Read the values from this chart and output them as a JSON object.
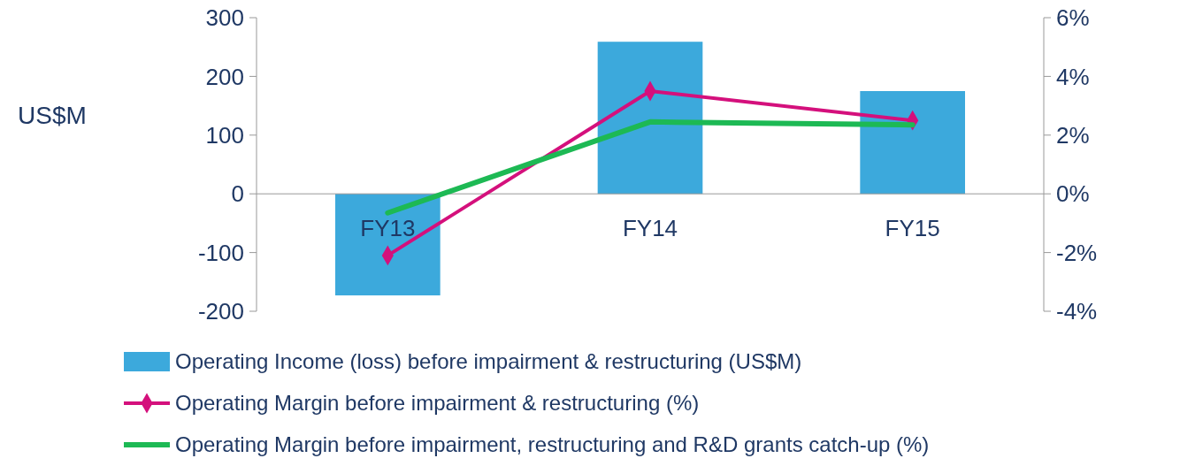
{
  "chart_data": {
    "type": "bar",
    "categories": [
      "FY13",
      "FY14",
      "FY15"
    ],
    "ylabel": "US$M",
    "ylim": [
      -200,
      300
    ],
    "yticks": [
      -200,
      -100,
      0,
      100,
      200,
      300
    ],
    "y2lim": [
      -4,
      6
    ],
    "y2ticks": [
      {
        "value": -4,
        "label": "-4%"
      },
      {
        "value": -2,
        "label": "-2%"
      },
      {
        "value": 0,
        "label": "0%"
      },
      {
        "value": 2,
        "label": "2%"
      },
      {
        "value": 4,
        "label": "4%"
      },
      {
        "value": 6,
        "label": "6%"
      }
    ],
    "legend": "bottom",
    "grid": false,
    "series": [
      {
        "name": "Operating Income (loss) before impairment & restructuring (US$M)",
        "color": "#3ca9dc",
        "values": [
          -173,
          259,
          175
        ]
      },
      {
        "name": "Operating Margin before impairment & restructuring (%)",
        "type": "line",
        "axis": "y2",
        "color": "#d4107c",
        "marker": "diamond",
        "values": [
          -2.1,
          3.5,
          2.5
        ]
      },
      {
        "name": "Operating Margin before impairment, restructuring and R&D grants catch-up (%)",
        "type": "line",
        "axis": "y2",
        "color": "#1db954",
        "marker": "none",
        "values": [
          -0.65,
          2.45,
          2.35
        ]
      }
    ]
  }
}
